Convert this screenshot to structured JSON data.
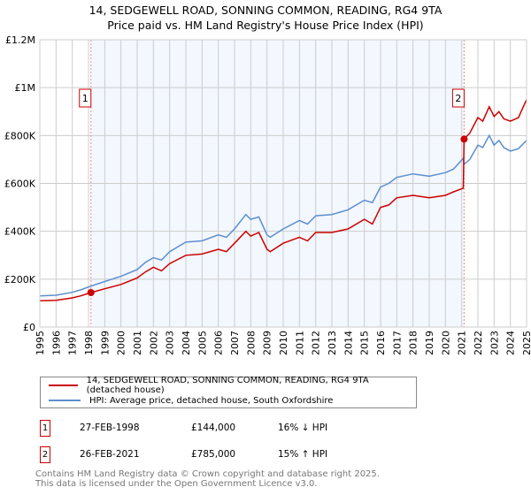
{
  "title": "14, SEDGEWELL ROAD, SONNING COMMON, READING, RG4 9TA",
  "subtitle": "Price paid vs. HM Land Registry's House Price Index (HPI)",
  "chart_data": {
    "type": "line",
    "title": "14, SEDGEWELL ROAD, SONNING COMMON, READING, RG4 9TA",
    "subtitle": "Price paid vs. HM Land Registry's House Price Index (HPI)",
    "xlim": [
      1995,
      2025
    ],
    "ylim": [
      0,
      1200000
    ],
    "xticks": [
      "1995",
      "1996",
      "1997",
      "1998",
      "1999",
      "2000",
      "2001",
      "2002",
      "2003",
      "2004",
      "2005",
      "2006",
      "2007",
      "2008",
      "2009",
      "2010",
      "2011",
      "2012",
      "2013",
      "2014",
      "2015",
      "2016",
      "2017",
      "2018",
      "2019",
      "2020",
      "2021",
      "2022",
      "2023",
      "2024",
      "2025"
    ],
    "yticks": [
      {
        "v": 0,
        "label": "£0"
      },
      {
        "v": 200000,
        "label": "£200K"
      },
      {
        "v": 400000,
        "label": "£400K"
      },
      {
        "v": 600000,
        "label": "£600K"
      },
      {
        "v": 800000,
        "label": "£800K"
      },
      {
        "v": 1000000,
        "label": "£1M"
      },
      {
        "v": 1200000,
        "label": "£1.2M"
      }
    ],
    "grid": true,
    "legend_position": "bottom",
    "series": [
      {
        "name": "14, SEDGEWELL ROAD, SONNING COMMON, READING, RG4 9TA (detached house)",
        "color": "#cc0000",
        "x": [
          1995,
          1996,
          1997,
          1997.5,
          1998.15,
          1999,
          2000,
          2001,
          2001.5,
          2002,
          2002.5,
          2003,
          2004,
          2005,
          2006,
          2006.5,
          2007,
          2007.7,
          2008,
          2008.5,
          2009,
          2009.2,
          2010,
          2011,
          2011.5,
          2012,
          2013,
          2014,
          2015,
          2015.5,
          2016,
          2016.5,
          2017,
          2018,
          2019,
          2020,
          2020.5,
          2021.1,
          2021.15,
          2021.5,
          2022,
          2022.3,
          2022.7,
          2023,
          2023.3,
          2023.6,
          2024,
          2024.5,
          2025
        ],
        "y": [
          110000,
          112000,
          122000,
          130000,
          144000,
          160000,
          178000,
          205000,
          230000,
          250000,
          235000,
          265000,
          300000,
          305000,
          325000,
          315000,
          350000,
          400000,
          380000,
          395000,
          325000,
          315000,
          350000,
          375000,
          360000,
          395000,
          395000,
          410000,
          450000,
          430000,
          500000,
          510000,
          540000,
          550000,
          540000,
          550000,
          565000,
          580000,
          785000,
          810000,
          875000,
          860000,
          920000,
          880000,
          900000,
          870000,
          860000,
          875000,
          950000
        ]
      },
      {
        "name": "HPI: Average price, detached house, South Oxfordshire",
        "color": "#5b8fd0",
        "x": [
          1995,
          1996,
          1997,
          1997.5,
          1998.15,
          1999,
          2000,
          2001,
          2001.5,
          2002,
          2002.5,
          2003,
          2004,
          2005,
          2006,
          2006.5,
          2007,
          2007.7,
          2008,
          2008.5,
          2009,
          2009.2,
          2010,
          2011,
          2011.5,
          2012,
          2013,
          2014,
          2015,
          2015.5,
          2016,
          2016.5,
          2017,
          2018,
          2019,
          2020,
          2020.5,
          2021.1,
          2021.15,
          2021.5,
          2022,
          2022.3,
          2022.7,
          2023,
          2023.3,
          2023.6,
          2024,
          2024.5,
          2025
        ],
        "y": [
          130000,
          133000,
          145000,
          155000,
          171000,
          190000,
          212000,
          240000,
          270000,
          290000,
          280000,
          315000,
          355000,
          360000,
          385000,
          375000,
          410000,
          470000,
          450000,
          460000,
          385000,
          375000,
          410000,
          445000,
          430000,
          465000,
          470000,
          490000,
          530000,
          520000,
          585000,
          600000,
          625000,
          640000,
          630000,
          645000,
          660000,
          705000,
          680000,
          700000,
          760000,
          750000,
          800000,
          760000,
          780000,
          750000,
          735000,
          745000,
          780000
        ]
      }
    ],
    "annotations": [
      {
        "label": "1",
        "x": 1998.15,
        "y": 144000
      },
      {
        "label": "2",
        "x": 2021.15,
        "y": 785000
      }
    ]
  },
  "table": [
    {
      "num": "1",
      "date": "27-FEB-1998",
      "price": "£144,000",
      "hpi": "16% ↓ HPI"
    },
    {
      "num": "2",
      "date": "26-FEB-2021",
      "price": "£785,000",
      "hpi": "15% ↑ HPI"
    }
  ],
  "footer": [
    "Contains HM Land Registry data © Crown copyright and database right 2025.",
    "This data is licensed under the Open Government Licence v3.0."
  ]
}
